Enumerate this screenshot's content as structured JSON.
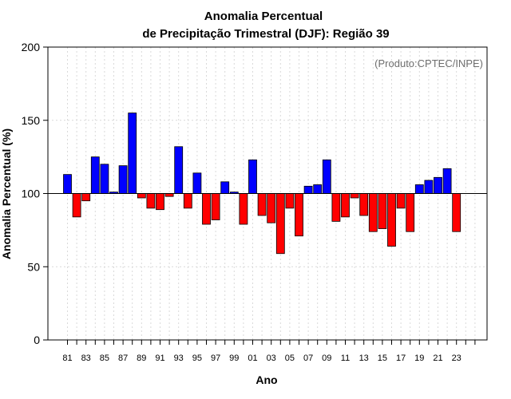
{
  "chart_data": {
    "type": "bar",
    "title_line1": "Anomalia Percentual",
    "title_line2": "de Precipitação Trimestral (DJF): Região 39",
    "xlabel": "Ano",
    "ylabel": "Anomalia Percentual (%)",
    "credit": "(Produto:CPTEC/INPE)",
    "baseline": 100,
    "ylim": [
      0,
      200
    ],
    "yticks": [
      "0",
      "50",
      "100",
      "150",
      "200"
    ],
    "grid": true,
    "colors": {
      "above": "#0000ff",
      "below": "#ff0000",
      "outline": "#000000",
      "grid": "#d9d9d9"
    },
    "tick_labels": [
      "81",
      "83",
      "85",
      "87",
      "89",
      "91",
      "93",
      "95",
      "97",
      "99",
      "01",
      "03",
      "05",
      "07",
      "09",
      "11",
      "13",
      "15",
      "17",
      "19",
      "21",
      "23"
    ],
    "years": [
      1981,
      1982,
      1983,
      1984,
      1985,
      1986,
      1987,
      1988,
      1989,
      1990,
      1991,
      1992,
      1993,
      1994,
      1995,
      1996,
      1997,
      1998,
      1999,
      2000,
      2001,
      2002,
      2003,
      2004,
      2005,
      2006,
      2007,
      2008,
      2009,
      2010,
      2011,
      2012,
      2013,
      2014,
      2015,
      2016,
      2017,
      2018,
      2019,
      2020,
      2021,
      2022,
      2023
    ],
    "values": [
      113,
      84,
      95,
      125,
      120,
      101,
      119,
      155,
      97,
      90,
      89,
      98,
      132,
      90,
      114,
      79,
      82,
      108,
      101,
      79,
      123,
      85,
      80,
      59,
      90,
      71,
      105,
      106,
      123,
      81,
      84,
      97,
      85,
      74,
      76,
      64,
      90,
      74,
      106,
      109,
      111,
      117,
      74
    ]
  }
}
